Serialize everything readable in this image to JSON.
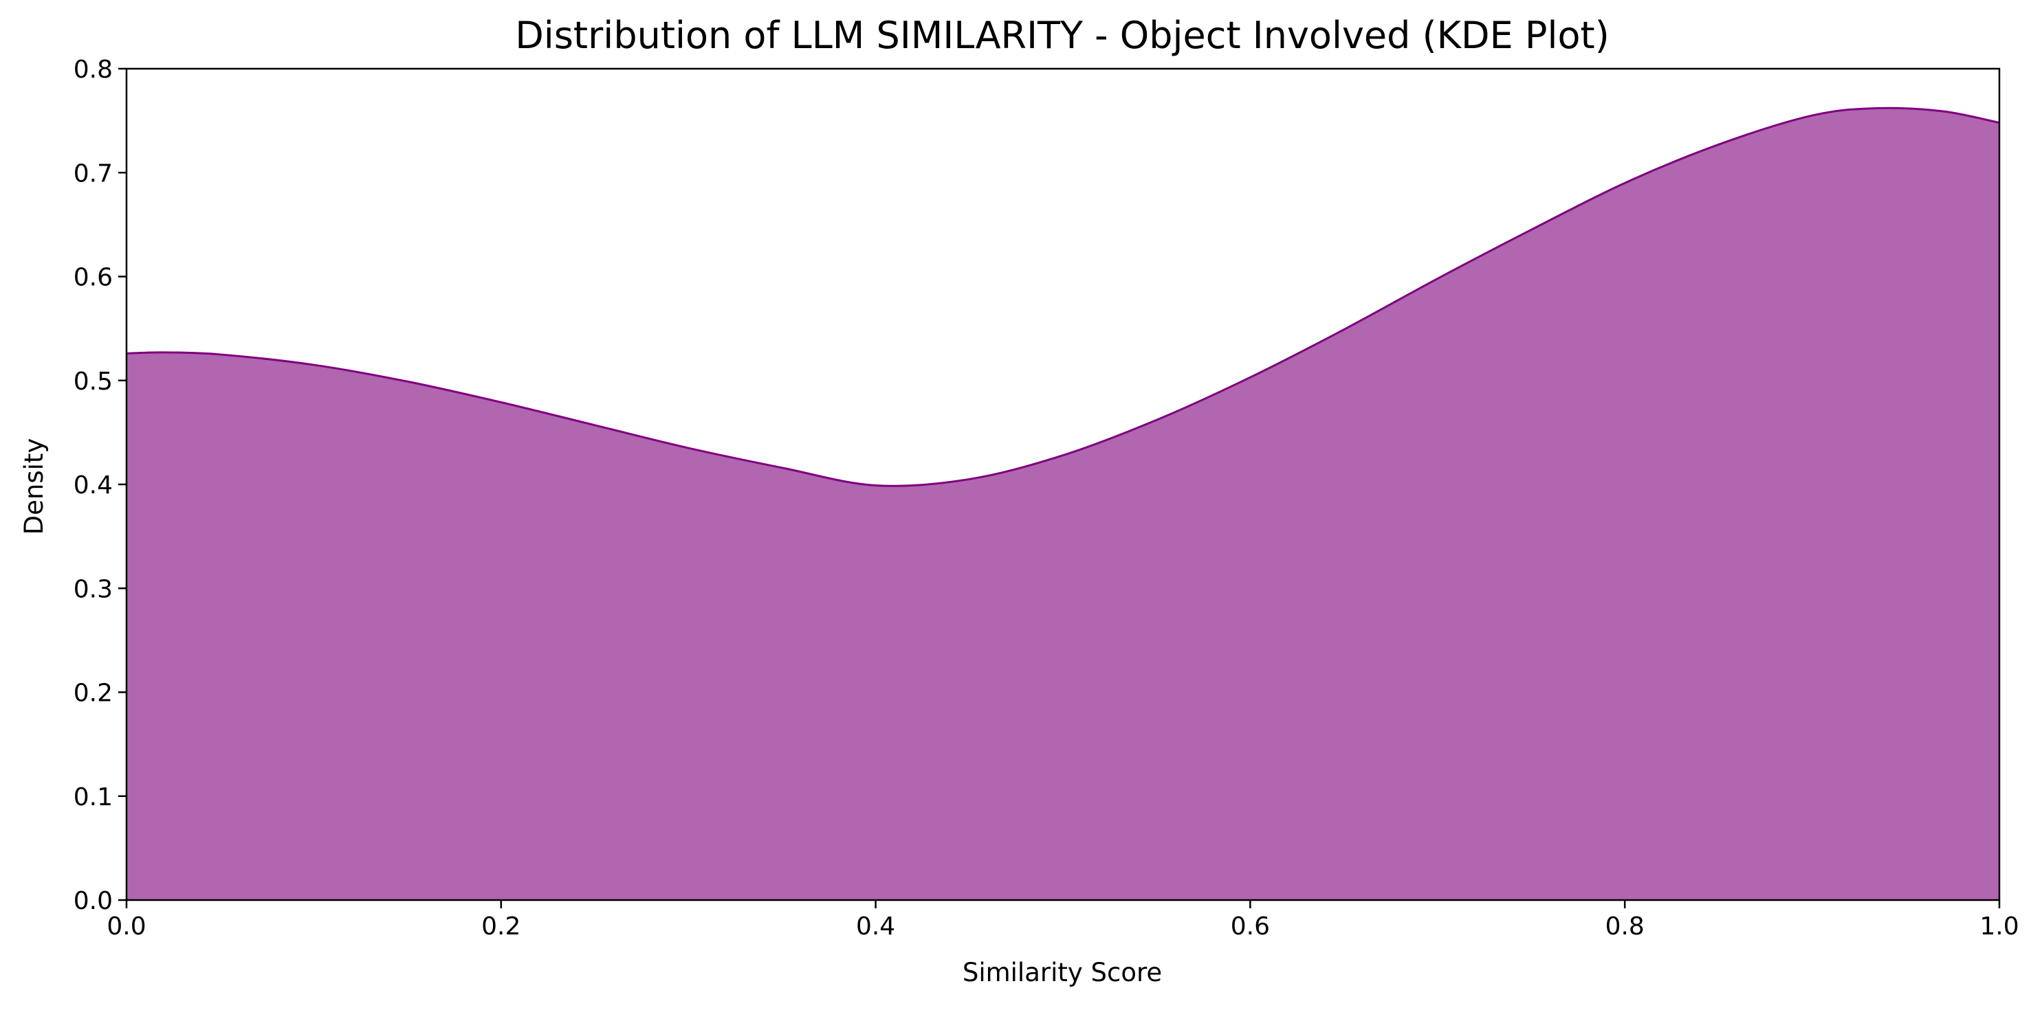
{
  "chart_data": {
    "type": "area",
    "title": "Distribution of LLM SIMILARITY - Object Involved (KDE Plot)",
    "xlabel": "Similarity Score",
    "ylabel": "Density",
    "xlim": [
      0.0,
      1.0
    ],
    "ylim": [
      0.0,
      0.8
    ],
    "x_ticks": [
      "0.0",
      "0.2",
      "0.4",
      "0.6",
      "0.8",
      "1.0"
    ],
    "y_ticks": [
      "0.0",
      "0.1",
      "0.2",
      "0.3",
      "0.4",
      "0.5",
      "0.6",
      "0.7",
      "0.8"
    ],
    "grid": false,
    "legend": "none",
    "fill_color": "#b166b0",
    "line_color": "#800080",
    "series": [
      {
        "x": [
          0.0,
          0.02,
          0.05,
          0.1,
          0.15,
          0.2,
          0.25,
          0.3,
          0.35,
          0.4,
          0.45,
          0.5,
          0.55,
          0.6,
          0.65,
          0.7,
          0.75,
          0.8,
          0.85,
          0.9,
          0.935,
          0.97,
          1.0
        ],
        "values": [
          0.526,
          0.527,
          0.525,
          0.515,
          0.499,
          0.479,
          0.457,
          0.435,
          0.416,
          0.399,
          0.405,
          0.428,
          0.462,
          0.503,
          0.549,
          0.598,
          0.645,
          0.69,
          0.727,
          0.755,
          0.762,
          0.759,
          0.748
        ]
      }
    ]
  }
}
